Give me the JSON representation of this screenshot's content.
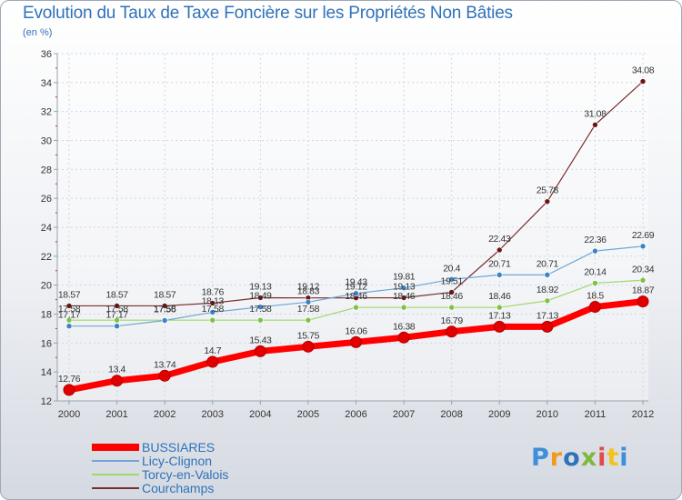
{
  "header": {
    "title": "Evolution du Taux de Taxe Foncière sur les Propriétés Non Bâties",
    "unit": "(en %)"
  },
  "brand": {
    "parts": [
      "P",
      "r",
      "o",
      "x",
      "i",
      "t",
      "i"
    ],
    "name": "Proxiti"
  },
  "chart_data": {
    "type": "line",
    "title": "Evolution du Taux de Taxe Foncière sur les Propriétés Non Bâties",
    "ylabel": "(en %)",
    "xlabel": "",
    "ylim": [
      12,
      36
    ],
    "yticks": [
      12,
      14,
      16,
      18,
      20,
      22,
      24,
      26,
      28,
      30,
      32,
      34,
      36
    ],
    "grid": true,
    "legend": "bottom-left",
    "x": [
      "2000",
      "2001",
      "2002",
      "2003",
      "2004",
      "2005",
      "2006",
      "2007",
      "2008",
      "2009",
      "2010",
      "2011",
      "2012"
    ],
    "series": [
      {
        "name": "BUSSIARES",
        "color": "#ff0000",
        "marker": "#e00000",
        "values": [
          12.76,
          13.4,
          13.74,
          14.7,
          15.43,
          15.75,
          16.06,
          16.38,
          16.79,
          17.13,
          17.13,
          18.5,
          18.87
        ],
        "labels": [
          "12.76",
          "13.4",
          "13.74",
          "14.7",
          "15.43",
          "15.75",
          "16.06",
          "16.38",
          "16.79",
          "17.13",
          "17.13",
          "18.5",
          "18.87"
        ]
      },
      {
        "name": "Licy-Clignon",
        "color": "#6fa6d6",
        "marker": "#3b82c4",
        "values": [
          17.17,
          17.17,
          17.56,
          18.13,
          18.49,
          18.83,
          19.43,
          19.81,
          20.4,
          20.71,
          20.71,
          22.36,
          22.69
        ],
        "labels": [
          "17.17",
          "17.17",
          "17.56",
          "18.13",
          "18.49",
          "18.83",
          "19.43",
          "19.81",
          "20.4",
          "20.71",
          "20.71",
          "22.36",
          "22.69"
        ]
      },
      {
        "name": "Torcy-en-Valois",
        "color": "#9ed86a",
        "marker": "#7cc243",
        "values": [
          17.58,
          17.58,
          17.58,
          17.58,
          17.58,
          17.58,
          18.46,
          18.46,
          18.46,
          18.46,
          18.92,
          20.14,
          20.34
        ],
        "labels": [
          "17.58",
          "17.58",
          "17.58",
          "17.58",
          "17.58",
          "17.58",
          "18.46",
          "18.46",
          "18.46",
          "18.46",
          "18.92",
          "20.14",
          "20.34"
        ]
      },
      {
        "name": "Courchamps",
        "color": "#7a2e2e",
        "marker": "#6b1515",
        "values": [
          18.57,
          18.57,
          18.57,
          18.76,
          19.13,
          19.12,
          19.12,
          19.13,
          19.51,
          22.43,
          25.78,
          31.08,
          34.08
        ],
        "labels": [
          "18.57",
          "18.57",
          "18.57",
          "18.76",
          "19.13",
          "19.12",
          "19.12",
          "19.13",
          "19.51",
          "22.43",
          "25.78",
          "31.08",
          "34.08"
        ]
      }
    ]
  }
}
